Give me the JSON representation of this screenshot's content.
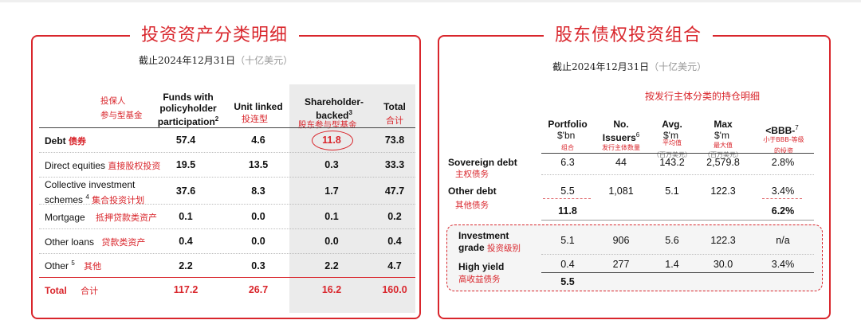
{
  "colors": {
    "accent": "#d9262c",
    "shade": "#ebebeb"
  },
  "left": {
    "title": "投资资产分类明细",
    "subtitle_date": "截止2024年12月31日",
    "subtitle_unit": "（十亿美元）",
    "headers": {
      "label_cn": "投保人\n参与型基金",
      "funds_with": "Funds with\npolicyholder\nparticipation",
      "funds_sup": "2",
      "unit_linked": "Unit linked",
      "unit_linked_cn": "投连型",
      "shareholder": "Shareholder-\nbacked",
      "shareholder_sup": "3",
      "shareholder_cn": "股东参与型基金",
      "total": "Total",
      "total_cn": "合计"
    },
    "rows": [
      {
        "label": "Debt",
        "cn": "债券",
        "fwp": "57.4",
        "ul": "4.6",
        "sb": "11.8",
        "total": "73.8"
      },
      {
        "label": "Direct equities",
        "cn": "直接股权投资",
        "fwp": "19.5",
        "ul": "13.5",
        "sb": "0.3",
        "total": "33.3"
      },
      {
        "label": "Collective investment",
        "label2": "schemes",
        "sup": "4",
        "cn": "集合投资计划",
        "fwp": "37.6",
        "ul": "8.3",
        "sb": "1.7",
        "total": "47.7"
      },
      {
        "label": "Mortgage",
        "cn": "抵押贷款类资产",
        "fwp": "0.1",
        "ul": "0.0",
        "sb": "0.1",
        "total": "0.2"
      },
      {
        "label": "Other loans",
        "cn": "贷款类资产",
        "fwp": "0.4",
        "ul": "0.0",
        "sb": "0.0",
        "total": "0.4"
      },
      {
        "label": "Other",
        "sup": "5",
        "cn": "其他",
        "fwp": "2.2",
        "ul": "0.3",
        "sb": "2.2",
        "total": "4.7"
      }
    ],
    "total_row": {
      "label": "Total",
      "cn": "合计",
      "fwp": "117.2",
      "ul": "26.7",
      "sb": "16.2",
      "total": "160.0"
    }
  },
  "right": {
    "title": "股东债权投资组合",
    "subtitle_date": "截止2024年12月31日",
    "subtitle_unit": "（十亿美元）",
    "section_cn": "按发行主体分类的持仓明细",
    "headers": {
      "portfolio": "Portfolio",
      "portfolio_unit": "$'bn",
      "portfolio_cn": "组合",
      "issuers": "No.\nIssuers",
      "issuers_sup": "6",
      "issuers_cn": "发行主体数量",
      "avg": "Avg.",
      "avg_unit": "$'m",
      "avg_cn": "平均值",
      "avg_cn2": "（百万美元）",
      "max": "Max",
      "max_unit": "$'m",
      "max_cn": "最大值",
      "max_cn2": "（百万美元）",
      "bbb": "<BBB-",
      "bbb_sup": "7",
      "bbb_cn": "小于BBB-等级",
      "bbb_cn2": "的投资"
    },
    "rows": [
      {
        "label": "Sovereign debt",
        "cn": "主权债务",
        "portfolio": "6.3",
        "issuers": "44",
        "avg": "143.2",
        "max": "2,579.8",
        "bbb": "2.8%"
      },
      {
        "label": "Other debt",
        "cn": "其他债务",
        "portfolio": "5.5",
        "issuers": "1,081",
        "avg": "5.1",
        "max": "122.3",
        "bbb": "3.4%"
      }
    ],
    "subtotal": {
      "portfolio": "11.8",
      "bbb": "6.2%"
    },
    "grade_rows": [
      {
        "label": "Investment",
        "label2": "grade",
        "cn": "投资级别",
        "portfolio": "5.1",
        "issuers": "906",
        "avg": "5.6",
        "max": "122.3",
        "bbb": "n/a"
      },
      {
        "label": "High yield",
        "cn": "高收益债务",
        "portfolio": "0.4",
        "issuers": "277",
        "avg": "1.4",
        "max": "30.0",
        "bbb": "3.4%"
      }
    ],
    "grade_subtotal": {
      "portfolio": "5.5"
    }
  }
}
